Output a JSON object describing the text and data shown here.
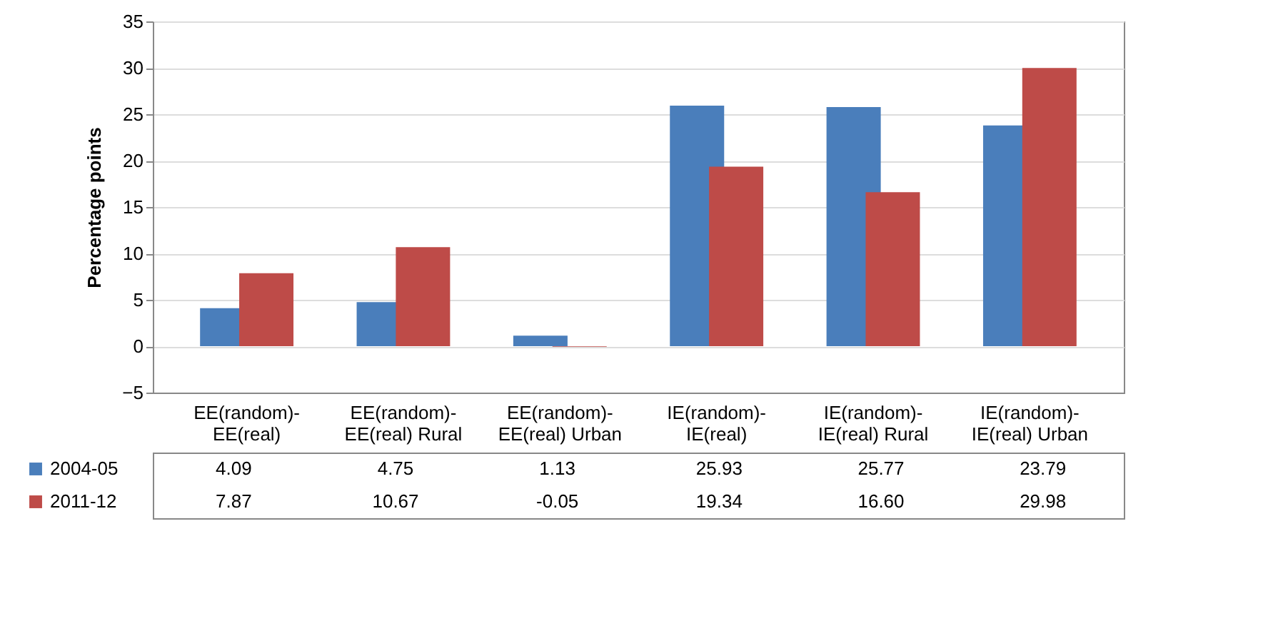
{
  "chart_data": {
    "type": "bar",
    "ylabel": "Percentage points",
    "categories": [
      "EE(random)-EE(real)",
      "EE(random)-EE(real) Rural",
      "EE(random)-EE(real) Urban",
      "IE(random)-IE(real)",
      "IE(random)-IE(real) Rural",
      "IE(random)-IE(real) Urban"
    ],
    "series": [
      {
        "name": "2004-05",
        "color": "#4a7ebb",
        "values": [
          4.09,
          4.75,
          1.13,
          25.93,
          25.77,
          23.79
        ],
        "value_labels": [
          "4.09",
          "4.75",
          "1.13",
          "25.93",
          "25.77",
          "23.79"
        ]
      },
      {
        "name": "2011-12",
        "color": "#be4b48",
        "values": [
          7.87,
          10.67,
          -0.05,
          19.34,
          16.6,
          29.98
        ],
        "value_labels": [
          "7.87",
          "10.67",
          "-0.05",
          "19.34",
          "16.60",
          "29.98"
        ]
      }
    ],
    "ylim": [
      -5,
      35
    ],
    "yticks": [
      -5,
      0,
      5,
      10,
      15,
      20,
      25,
      30,
      35
    ],
    "grid": "y",
    "legend": "bottom"
  }
}
